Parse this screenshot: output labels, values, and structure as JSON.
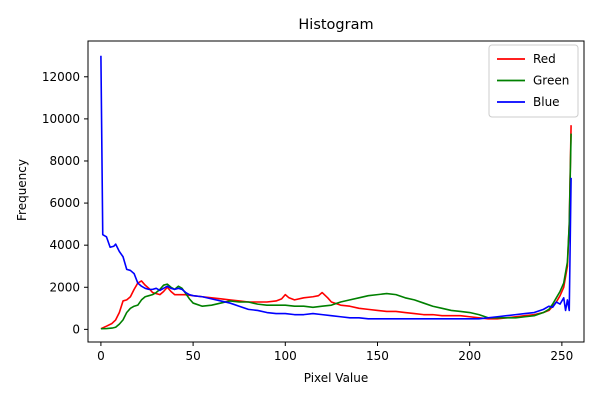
{
  "chart_data": {
    "type": "line",
    "title": "Histogram",
    "xlabel": "Pixel Value",
    "ylabel": "Frequency",
    "xlim": [
      -7,
      262
    ],
    "ylim": [
      -600,
      13700
    ],
    "xticks": [
      0,
      50,
      100,
      150,
      200,
      250
    ],
    "yticks": [
      0,
      2000,
      4000,
      6000,
      8000,
      10000,
      12000
    ],
    "legend_position": "top-right",
    "series": [
      {
        "name": "Red",
        "color": "#ff0000",
        "points": [
          [
            0,
            30
          ],
          [
            3,
            150
          ],
          [
            6,
            280
          ],
          [
            8,
            450
          ],
          [
            10,
            800
          ],
          [
            12,
            1350
          ],
          [
            14,
            1400
          ],
          [
            16,
            1550
          ],
          [
            18,
            1900
          ],
          [
            20,
            2200
          ],
          [
            22,
            2300
          ],
          [
            24,
            2100
          ],
          [
            26,
            1950
          ],
          [
            28,
            1750
          ],
          [
            30,
            1700
          ],
          [
            32,
            1650
          ],
          [
            34,
            1800
          ],
          [
            36,
            2000
          ],
          [
            38,
            1800
          ],
          [
            40,
            1650
          ],
          [
            45,
            1650
          ],
          [
            50,
            1600
          ],
          [
            55,
            1550
          ],
          [
            60,
            1500
          ],
          [
            65,
            1450
          ],
          [
            70,
            1400
          ],
          [
            75,
            1350
          ],
          [
            80,
            1300
          ],
          [
            85,
            1300
          ],
          [
            90,
            1300
          ],
          [
            95,
            1350
          ],
          [
            98,
            1450
          ],
          [
            100,
            1650
          ],
          [
            102,
            1500
          ],
          [
            105,
            1400
          ],
          [
            110,
            1500
          ],
          [
            115,
            1550
          ],
          [
            118,
            1600
          ],
          [
            120,
            1750
          ],
          [
            123,
            1500
          ],
          [
            125,
            1300
          ],
          [
            130,
            1150
          ],
          [
            135,
            1100
          ],
          [
            140,
            1000
          ],
          [
            145,
            950
          ],
          [
            150,
            900
          ],
          [
            155,
            850
          ],
          [
            160,
            850
          ],
          [
            165,
            800
          ],
          [
            170,
            750
          ],
          [
            175,
            700
          ],
          [
            180,
            700
          ],
          [
            185,
            650
          ],
          [
            190,
            650
          ],
          [
            195,
            650
          ],
          [
            200,
            600
          ],
          [
            205,
            550
          ],
          [
            210,
            500
          ],
          [
            215,
            500
          ],
          [
            220,
            550
          ],
          [
            225,
            600
          ],
          [
            230,
            650
          ],
          [
            235,
            700
          ],
          [
            240,
            800
          ],
          [
            243,
            900
          ],
          [
            245,
            1100
          ],
          [
            247,
            1300
          ],
          [
            249,
            1600
          ],
          [
            251,
            2000
          ],
          [
            253,
            3000
          ],
          [
            254,
            5000
          ],
          [
            255,
            9700
          ]
        ]
      },
      {
        "name": "Green",
        "color": "#008000",
        "points": [
          [
            0,
            30
          ],
          [
            3,
            40
          ],
          [
            6,
            60
          ],
          [
            8,
            100
          ],
          [
            10,
            250
          ],
          [
            12,
            450
          ],
          [
            14,
            800
          ],
          [
            16,
            1000
          ],
          [
            18,
            1100
          ],
          [
            20,
            1150
          ],
          [
            22,
            1400
          ],
          [
            24,
            1550
          ],
          [
            26,
            1600
          ],
          [
            28,
            1650
          ],
          [
            30,
            1750
          ],
          [
            32,
            1900
          ],
          [
            34,
            2100
          ],
          [
            36,
            2150
          ],
          [
            38,
            2000
          ],
          [
            40,
            1900
          ],
          [
            42,
            2050
          ],
          [
            44,
            1950
          ],
          [
            46,
            1700
          ],
          [
            48,
            1450
          ],
          [
            50,
            1250
          ],
          [
            55,
            1100
          ],
          [
            60,
            1150
          ],
          [
            65,
            1250
          ],
          [
            70,
            1350
          ],
          [
            75,
            1300
          ],
          [
            80,
            1300
          ],
          [
            85,
            1200
          ],
          [
            90,
            1150
          ],
          [
            95,
            1150
          ],
          [
            100,
            1150
          ],
          [
            105,
            1100
          ],
          [
            110,
            1100
          ],
          [
            115,
            1050
          ],
          [
            120,
            1100
          ],
          [
            125,
            1150
          ],
          [
            130,
            1300
          ],
          [
            135,
            1400
          ],
          [
            140,
            1500
          ],
          [
            145,
            1600
          ],
          [
            150,
            1650
          ],
          [
            155,
            1700
          ],
          [
            160,
            1650
          ],
          [
            165,
            1500
          ],
          [
            170,
            1400
          ],
          [
            175,
            1250
          ],
          [
            180,
            1100
          ],
          [
            185,
            1000
          ],
          [
            190,
            900
          ],
          [
            195,
            850
          ],
          [
            200,
            800
          ],
          [
            205,
            700
          ],
          [
            210,
            550
          ],
          [
            215,
            550
          ],
          [
            220,
            550
          ],
          [
            225,
            550
          ],
          [
            230,
            600
          ],
          [
            235,
            650
          ],
          [
            240,
            800
          ],
          [
            243,
            950
          ],
          [
            245,
            1200
          ],
          [
            247,
            1500
          ],
          [
            249,
            1800
          ],
          [
            251,
            2200
          ],
          [
            253,
            3200
          ],
          [
            254,
            5000
          ],
          [
            255,
            9300
          ]
        ]
      },
      {
        "name": "Blue",
        "color": "#0000ff",
        "points": [
          [
            0,
            13000
          ],
          [
            1,
            4500
          ],
          [
            3,
            4400
          ],
          [
            5,
            3900
          ],
          [
            7,
            3950
          ],
          [
            8,
            4050
          ],
          [
            10,
            3700
          ],
          [
            12,
            3450
          ],
          [
            14,
            2850
          ],
          [
            16,
            2800
          ],
          [
            18,
            2650
          ],
          [
            20,
            2200
          ],
          [
            22,
            2050
          ],
          [
            24,
            1950
          ],
          [
            26,
            1900
          ],
          [
            28,
            1900
          ],
          [
            30,
            1950
          ],
          [
            32,
            1850
          ],
          [
            34,
            1950
          ],
          [
            36,
            2050
          ],
          [
            38,
            1950
          ],
          [
            40,
            1900
          ],
          [
            42,
            1950
          ],
          [
            44,
            1900
          ],
          [
            46,
            1750
          ],
          [
            48,
            1650
          ],
          [
            50,
            1600
          ],
          [
            55,
            1550
          ],
          [
            60,
            1450
          ],
          [
            65,
            1350
          ],
          [
            70,
            1250
          ],
          [
            75,
            1100
          ],
          [
            80,
            950
          ],
          [
            85,
            900
          ],
          [
            90,
            800
          ],
          [
            95,
            750
          ],
          [
            100,
            750
          ],
          [
            105,
            700
          ],
          [
            110,
            700
          ],
          [
            115,
            750
          ],
          [
            120,
            700
          ],
          [
            125,
            650
          ],
          [
            130,
            600
          ],
          [
            135,
            550
          ],
          [
            140,
            550
          ],
          [
            145,
            500
          ],
          [
            150,
            500
          ],
          [
            155,
            500
          ],
          [
            160,
            500
          ],
          [
            165,
            500
          ],
          [
            170,
            500
          ],
          [
            175,
            500
          ],
          [
            180,
            500
          ],
          [
            185,
            500
          ],
          [
            190,
            500
          ],
          [
            195,
            500
          ],
          [
            200,
            500
          ],
          [
            205,
            500
          ],
          [
            210,
            550
          ],
          [
            215,
            600
          ],
          [
            220,
            650
          ],
          [
            225,
            700
          ],
          [
            230,
            750
          ],
          [
            235,
            800
          ],
          [
            240,
            950
          ],
          [
            243,
            1100
          ],
          [
            245,
            1050
          ],
          [
            247,
            1300
          ],
          [
            249,
            1200
          ],
          [
            251,
            1500
          ],
          [
            252,
            900
          ],
          [
            253,
            1400
          ],
          [
            254,
            900
          ],
          [
            255,
            7200
          ]
        ]
      }
    ]
  }
}
